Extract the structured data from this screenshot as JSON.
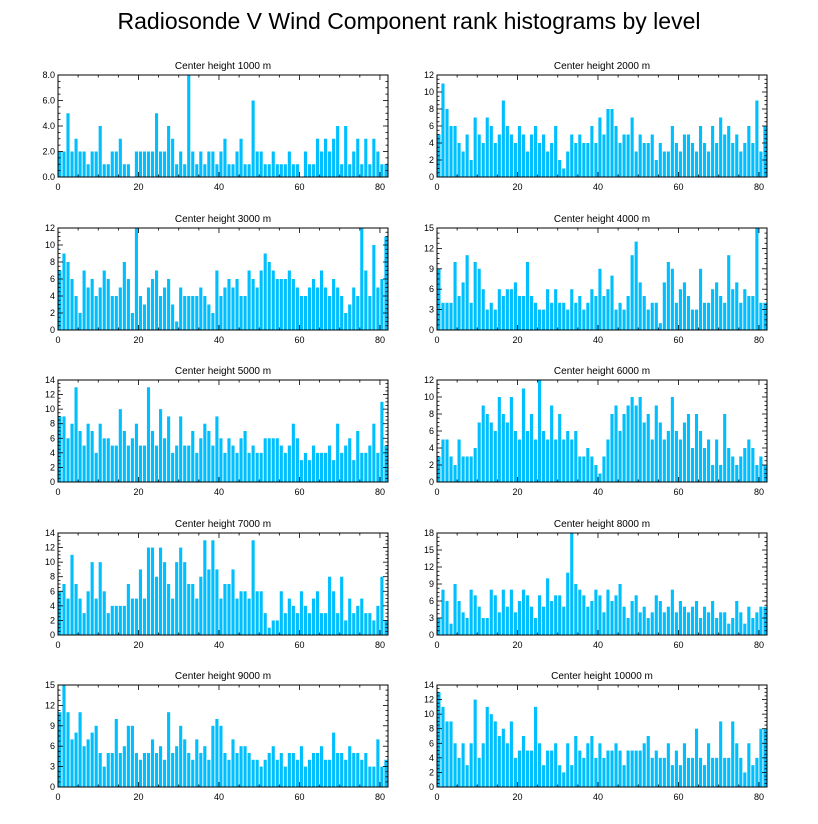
{
  "title": "Radiosonde V Wind Component rank histograms by level",
  "colors": {
    "bar": "#00BFFF",
    "axis": "#000000",
    "background": "#ffffff"
  },
  "chart_data": [
    {
      "type": "bar",
      "title": "Center height 1000 m",
      "xlim": [
        0,
        82
      ],
      "ylim": [
        0,
        8
      ],
      "xticks": [
        0,
        20,
        40,
        60,
        80
      ],
      "yticks": [
        0,
        2,
        4,
        6,
        8
      ],
      "yticklabels": [
        "0.0",
        "2.0",
        "4.0",
        "6.0",
        "8.0"
      ],
      "values": [
        2,
        2,
        5,
        2,
        3,
        2,
        2,
        1,
        2,
        2,
        4,
        1,
        1,
        2,
        2,
        3,
        1,
        1,
        0,
        2,
        2,
        2,
        2,
        2,
        5,
        2,
        2,
        4,
        3,
        1,
        2,
        1,
        8,
        2,
        1,
        2,
        1,
        2,
        2,
        1,
        2,
        3,
        1,
        1,
        2,
        3,
        1,
        1,
        6,
        2,
        2,
        1,
        1,
        2,
        1,
        1,
        1,
        2,
        1,
        1,
        0,
        2,
        1,
        1,
        3,
        2,
        3,
        2,
        3,
        4,
        1,
        4,
        1,
        2,
        3,
        1,
        3,
        1,
        3,
        2,
        1,
        1
      ]
    },
    {
      "type": "bar",
      "title": "Center height 2000 m",
      "xlim": [
        0,
        82
      ],
      "ylim": [
        0,
        12
      ],
      "xticks": [
        0,
        20,
        40,
        60,
        80
      ],
      "yticks": [
        0,
        2,
        4,
        6,
        8,
        10,
        12
      ],
      "values": [
        5,
        11,
        8,
        6,
        6,
        4,
        3,
        5,
        2,
        7,
        5,
        4,
        7,
        6,
        4,
        5,
        9,
        6,
        5,
        4,
        6,
        5,
        3,
        5,
        6,
        4,
        5,
        3,
        4,
        6,
        2,
        1,
        3,
        5,
        4,
        5,
        4,
        4,
        6,
        4,
        7,
        5,
        8,
        8,
        6,
        4,
        5,
        5,
        7,
        3,
        5,
        4,
        4,
        5,
        2,
        4,
        3,
        3,
        6,
        4,
        3,
        5,
        5,
        4,
        3,
        6,
        4,
        3,
        6,
        4,
        7,
        5,
        6,
        4,
        5,
        3,
        4,
        6,
        4,
        9,
        3,
        6
      ]
    },
    {
      "type": "bar",
      "title": "Center height 3000 m",
      "xlim": [
        0,
        82
      ],
      "ylim": [
        0,
        12
      ],
      "xticks": [
        0,
        20,
        40,
        60,
        80
      ],
      "yticks": [
        0,
        2,
        4,
        6,
        8,
        10,
        12
      ],
      "values": [
        7,
        9,
        8,
        6,
        4,
        2,
        7,
        5,
        6,
        4,
        5,
        7,
        6,
        4,
        4,
        5,
        8,
        6,
        2,
        12,
        4,
        3,
        5,
        6,
        7,
        4,
        5,
        6,
        3,
        1,
        5,
        4,
        4,
        4,
        4,
        5,
        4,
        3,
        2,
        7,
        4,
        5,
        6,
        5,
        6,
        4,
        4,
        7,
        6,
        5,
        7,
        9,
        8,
        7,
        6,
        6,
        6,
        7,
        6,
        5,
        4,
        4,
        5,
        6,
        5,
        7,
        5,
        4,
        6,
        5,
        4,
        2,
        3,
        5,
        4,
        12,
        7,
        4,
        10,
        5,
        6,
        11
      ]
    },
    {
      "type": "bar",
      "title": "Center height 4000 m",
      "xlim": [
        0,
        82
      ],
      "ylim": [
        0,
        15
      ],
      "xticks": [
        0,
        20,
        40,
        60,
        80
      ],
      "yticks": [
        0,
        3,
        6,
        9,
        12,
        15
      ],
      "values": [
        9,
        4,
        4,
        4,
        10,
        5,
        7,
        11,
        4,
        10,
        9,
        6,
        3,
        4,
        3,
        6,
        5,
        6,
        6,
        7,
        5,
        5,
        10,
        5,
        4,
        3,
        3,
        6,
        4,
        6,
        4,
        4,
        3,
        6,
        4,
        5,
        3,
        4,
        6,
        5,
        9,
        5,
        6,
        8,
        3,
        4,
        3,
        5,
        11,
        13,
        7,
        5,
        3,
        4,
        4,
        1,
        7,
        10,
        9,
        4,
        6,
        7,
        5,
        3,
        3,
        9,
        4,
        4,
        6,
        7,
        5,
        4,
        11,
        6,
        7,
        4,
        6,
        5,
        5,
        15,
        4,
        4
      ]
    },
    {
      "type": "bar",
      "title": "Center height 5000 m",
      "xlim": [
        0,
        82
      ],
      "ylim": [
        0,
        14
      ],
      "xticks": [
        0,
        20,
        40,
        60,
        80
      ],
      "yticks": [
        0,
        2,
        4,
        6,
        8,
        10,
        12,
        14
      ],
      "values": [
        9,
        9,
        6,
        8,
        13,
        7,
        5,
        8,
        7,
        4,
        8,
        6,
        6,
        5,
        5,
        10,
        7,
        5,
        6,
        8,
        5,
        5,
        13,
        7,
        5,
        10,
        6,
        9,
        4,
        5,
        9,
        5,
        5,
        7,
        4,
        6,
        8,
        7,
        5,
        9,
        6,
        4,
        6,
        5,
        4,
        6,
        7,
        4,
        5,
        4,
        4,
        6,
        6,
        6,
        6,
        5,
        4,
        5,
        8,
        6,
        3,
        4,
        3,
        5,
        4,
        4,
        4,
        5,
        3,
        8,
        4,
        5,
        6,
        3,
        7,
        4,
        4,
        5,
        8,
        4,
        11,
        5
      ]
    },
    {
      "type": "bar",
      "title": "Center height 6000 m",
      "xlim": [
        0,
        82
      ],
      "ylim": [
        0,
        12
      ],
      "xticks": [
        0,
        20,
        40,
        60,
        80
      ],
      "yticks": [
        0,
        2,
        4,
        6,
        8,
        10,
        12
      ],
      "values": [
        3,
        5,
        5,
        3,
        2,
        5,
        3,
        3,
        3,
        4,
        7,
        9,
        8,
        7,
        6,
        10,
        8,
        7,
        10,
        6,
        5,
        11,
        6,
        8,
        5,
        12,
        6,
        5,
        9,
        5,
        8,
        5,
        6,
        5,
        6,
        3,
        3,
        4,
        3,
        2,
        1,
        3,
        5,
        8,
        9,
        6,
        8,
        9,
        10,
        9,
        10,
        7,
        8,
        5,
        9,
        7,
        5,
        6,
        10,
        6,
        5,
        7,
        8,
        4,
        8,
        6,
        4,
        5,
        2,
        5,
        2,
        8,
        4,
        3,
        2,
        3,
        4,
        5,
        4,
        2,
        3,
        2
      ]
    },
    {
      "type": "bar",
      "title": "Center height 7000 m",
      "xlim": [
        0,
        82
      ],
      "ylim": [
        0,
        14
      ],
      "xticks": [
        0,
        20,
        40,
        60,
        80
      ],
      "yticks": [
        0,
        2,
        4,
        6,
        8,
        10,
        12,
        14
      ],
      "values": [
        6,
        7,
        5,
        11,
        7,
        5,
        3,
        6,
        10,
        5,
        10,
        6,
        3,
        4,
        4,
        4,
        4,
        7,
        5,
        5,
        9,
        5,
        12,
        12,
        8,
        12,
        10,
        7,
        5,
        10,
        12,
        10,
        7,
        7,
        5,
        8,
        13,
        9,
        13,
        9,
        5,
        7,
        7,
        9,
        5,
        6,
        6,
        5,
        13,
        6,
        6,
        3,
        1,
        2,
        2,
        6,
        3,
        5,
        4,
        3,
        6,
        4,
        3,
        5,
        6,
        3,
        3,
        8,
        6,
        3,
        8,
        2,
        5,
        3,
        4,
        5,
        3,
        3,
        2,
        4,
        8,
        2
      ]
    },
    {
      "type": "bar",
      "title": "Center height 8000 m",
      "xlim": [
        0,
        82
      ],
      "ylim": [
        0,
        18
      ],
      "xticks": [
        0,
        20,
        40,
        60,
        80
      ],
      "yticks": [
        0,
        3,
        6,
        9,
        12,
        15,
        18
      ],
      "values": [
        3,
        8,
        6,
        2,
        9,
        6,
        4,
        3,
        8,
        7,
        5,
        3,
        3,
        8,
        7,
        4,
        8,
        5,
        8,
        4,
        6,
        8,
        7,
        5,
        3,
        7,
        5,
        10,
        6,
        7,
        7,
        5,
        11,
        18,
        9,
        8,
        7,
        5,
        6,
        8,
        7,
        4,
        8,
        6,
        7,
        9,
        5,
        3,
        6,
        7,
        4,
        5,
        3,
        4,
        7,
        6,
        4,
        5,
        8,
        4,
        6,
        5,
        4,
        5,
        6,
        3,
        5,
        4,
        6,
        3,
        4,
        4,
        2,
        3,
        6,
        4,
        2,
        5,
        3,
        4,
        5,
        5
      ]
    },
    {
      "type": "bar",
      "title": "Center height 9000 m",
      "xlim": [
        0,
        82
      ],
      "ylim": [
        0,
        15
      ],
      "xticks": [
        0,
        20,
        40,
        60,
        80
      ],
      "yticks": [
        0,
        3,
        6,
        9,
        12,
        15
      ],
      "values": [
        11,
        15,
        11,
        7,
        8,
        11,
        6,
        7,
        8,
        9,
        5,
        3,
        5,
        5,
        10,
        5,
        6,
        9,
        9,
        5,
        4,
        5,
        5,
        7,
        5,
        6,
        4,
        11,
        5,
        6,
        9,
        7,
        5,
        4,
        7,
        5,
        6,
        4,
        9,
        10,
        9,
        5,
        4,
        7,
        5,
        6,
        6,
        5,
        4,
        4,
        3,
        4,
        5,
        6,
        4,
        5,
        3,
        5,
        5,
        4,
        6,
        3,
        4,
        5,
        5,
        6,
        4,
        4,
        8,
        5,
        5,
        4,
        6,
        5,
        5,
        4,
        5,
        3,
        3,
        7,
        3,
        4
      ]
    },
    {
      "type": "bar",
      "title": "Center height 10000 m",
      "xlim": [
        0,
        82
      ],
      "ylim": [
        0,
        14
      ],
      "xticks": [
        0,
        20,
        40,
        60,
        80
      ],
      "yticks": [
        0,
        2,
        4,
        6,
        8,
        10,
        12,
        14
      ],
      "values": [
        13,
        11,
        9,
        9,
        6,
        4,
        6,
        3,
        6,
        12,
        4,
        6,
        11,
        10,
        9,
        7,
        8,
        6,
        9,
        4,
        5,
        7,
        5,
        5,
        11,
        6,
        3,
        5,
        5,
        6,
        3,
        2,
        6,
        3,
        7,
        5,
        4,
        6,
        7,
        4,
        6,
        4,
        5,
        5,
        6,
        5,
        3,
        5,
        5,
        5,
        5,
        6,
        7,
        4,
        5,
        4,
        4,
        6,
        3,
        5,
        3,
        6,
        4,
        4,
        8,
        4,
        3,
        6,
        4,
        4,
        9,
        4,
        4,
        9,
        6,
        4,
        2,
        6,
        3,
        4,
        8,
        8
      ]
    }
  ]
}
